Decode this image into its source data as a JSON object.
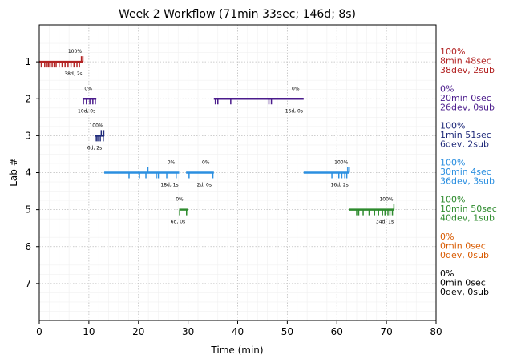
{
  "chart_data": {
    "type": "timeline",
    "title": "Week 2 Workflow (71min 33sec; 146d; 8s)",
    "xlabel": "Time (min)",
    "ylabel": "Lab #",
    "xlim": [
      0,
      80
    ],
    "ylim": [
      8,
      0
    ],
    "xticks": [
      "0",
      "10",
      "20",
      "30",
      "40",
      "50",
      "60",
      "70",
      "80"
    ],
    "yticks": [
      "1",
      "2",
      "3",
      "4",
      "5",
      "6",
      "7"
    ],
    "grid": true,
    "labs": [
      {
        "lab": 1,
        "color": "#b22222",
        "legend": [
          "100%",
          "8min 48sec",
          "38dev, 2sub"
        ],
        "segments": [
          {
            "start": 0.0,
            "end": 8.8,
            "pct": "100%",
            "stats": "38d, 2s",
            "devs": [
              0.4,
              1.1,
              1.6,
              1.9,
              2.2,
              2.6,
              3.0,
              3.4,
              4.0,
              4.6,
              5.2,
              5.8,
              6.4,
              7.0,
              7.6,
              8.1
            ],
            "subs": [
              8.5,
              8.8
            ]
          }
        ]
      },
      {
        "lab": 2,
        "color": "#4b1c8c",
        "legend": [
          "0%",
          "20min 0sec",
          "26dev, 0sub"
        ],
        "segments": [
          {
            "start": 8.8,
            "end": 11.5,
            "pct": "0%",
            "stats": "10d, 0s",
            "devs": [
              8.9,
              9.5,
              10.2,
              10.8,
              11.3
            ],
            "subs": []
          },
          {
            "start": 35.2,
            "end": 53.3,
            "pct": "0%",
            "stats": "16d, 0s",
            "devs": [
              35.5,
              36.0,
              38.6,
              46.3,
              46.8
            ],
            "subs": []
          }
        ]
      },
      {
        "lab": 3,
        "color": "#1f2a7a",
        "legend": [
          "100%",
          "1min 51sec",
          "6dev, 2sub"
        ],
        "segments": [
          {
            "start": 11.3,
            "end": 13.1,
            "pct": "100%",
            "stats": "6d, 2s",
            "devs": [
              11.5,
              11.8,
              12.3,
              12.9
            ],
            "subs": [
              12.5,
              13.0
            ]
          }
        ]
      },
      {
        "lab": 4,
        "color": "#2b8fe0",
        "legend": [
          "100%",
          "30min 4sec",
          "36dev, 3sub"
        ],
        "segments": [
          {
            "start": 13.1,
            "end": 28.2,
            "pct": "0%",
            "stats": "18d, 1s",
            "devs": [
              18.1,
              20.2,
              21.5,
              23.6,
              24.0,
              25.7,
              27.6
            ],
            "subs": [
              21.9
            ]
          },
          {
            "start": 29.6,
            "end": 35.2,
            "pct": "0%",
            "stats": "2d, 0s",
            "devs": [
              30.2,
              35.0
            ],
            "subs": []
          },
          {
            "start": 53.3,
            "end": 62.5,
            "pct": "100%",
            "stats": "16d, 2s",
            "devs": [
              59.0,
              60.4,
              61.0,
              61.6,
              62.0
            ],
            "subs": [
              62.2,
              62.5
            ]
          }
        ]
      },
      {
        "lab": 5,
        "color": "#2e8b2e",
        "legend": [
          "100%",
          "10min 50sec",
          "40dev, 1sub"
        ],
        "segments": [
          {
            "start": 28.2,
            "end": 29.9,
            "pct": "0%",
            "stats": "6d, 0s",
            "devs": [
              28.3,
              29.7
            ],
            "subs": []
          },
          {
            "start": 62.5,
            "end": 71.6,
            "pct": "100%",
            "stats": "34d, 1s",
            "devs": [
              64.0,
              64.4,
              65.3,
              66.5,
              67.6,
              68.4,
              69.2,
              69.7,
              70.3,
              70.7,
              71.2
            ],
            "subs": [
              71.5
            ]
          }
        ]
      },
      {
        "lab": 6,
        "color": "#d85a00",
        "legend": [
          "0%",
          "0min 0sec",
          "0dev, 0sub"
        ],
        "segments": []
      },
      {
        "lab": 7,
        "color": "#000000",
        "legend": [
          "0%",
          "0min 0sec",
          "0dev, 0sub"
        ],
        "segments": []
      }
    ]
  }
}
